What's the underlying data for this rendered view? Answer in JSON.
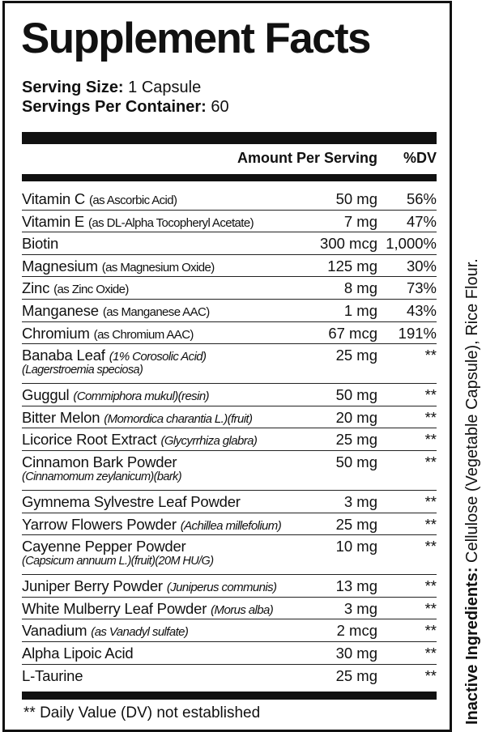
{
  "title": "Supplement Facts",
  "serving_size": {
    "label": "Serving Size:",
    "value": "1 Capsule"
  },
  "servings_per_container": {
    "label": "Servings Per Container:",
    "value": "60"
  },
  "columns": {
    "amount": "Amount Per Serving",
    "dv": "%DV"
  },
  "rows": [
    {
      "name": "Vitamin C",
      "detail": "(as Ascorbic Acid)",
      "amount": "50 mg",
      "dv": "56%"
    },
    {
      "name": "Vitamin E",
      "detail": "(as DL-Alpha Tocopheryl Acetate)",
      "amount": "7 mg",
      "dv": "47%"
    },
    {
      "name": "Biotin",
      "detail": "",
      "amount": "300 mcg",
      "dv": "1,000%"
    },
    {
      "name": "Magnesium",
      "detail": "(as Magnesium Oxide)",
      "amount": "125 mg",
      "dv": "30%"
    },
    {
      "name": "Zinc",
      "detail": "(as Zinc Oxide)",
      "amount": "8 mg",
      "dv": "73%"
    },
    {
      "name": "Manganese",
      "detail": "(as Manganese AAC)",
      "amount": "1 mg",
      "dv": "43%"
    },
    {
      "name": "Chromium",
      "detail": "(as Chromium AAC)",
      "amount": "67 mcg",
      "dv": "191%"
    },
    {
      "name": "Banaba Leaf",
      "detail": "(1% Corosolic Acid)",
      "detail2": "(Lagerstroemia speciosa)",
      "italic": true,
      "amount": "25 mg",
      "dv": "**"
    },
    {
      "name": "Guggul",
      "detail": "(Commiphora mukul)(resin)",
      "italic": true,
      "amount": "50 mg",
      "dv": "**"
    },
    {
      "name": "Bitter Melon",
      "detail": "(Momordica charantia L.)(fruit)",
      "italic": true,
      "amount": "20 mg",
      "dv": "**"
    },
    {
      "name": "Licorice Root Extract",
      "detail": "(Glycyrrhiza glabra)",
      "italic": true,
      "amount": "25 mg",
      "dv": "**"
    },
    {
      "name": "Cinnamon Bark Powder",
      "detail": "",
      "detail2": "(Cinnamomum zeylanicum)(bark)",
      "italic": true,
      "amount": "50 mg",
      "dv": "**"
    },
    {
      "name": "Gymnema Sylvestre Leaf Powder",
      "detail": "",
      "amount": "3 mg",
      "dv": "**"
    },
    {
      "name": "Yarrow Flowers Powder",
      "detail": "(Achillea millefolium)",
      "italic": true,
      "amount": "25 mg",
      "dv": "**"
    },
    {
      "name": "Cayenne Pepper Powder",
      "detail": "",
      "detail2": "(Capsicum annuum L.)(fruit)(20M HU/G)",
      "italic": true,
      "amount": "10 mg",
      "dv": "**"
    },
    {
      "name": "Juniper Berry Powder",
      "detail": "(Juniperus communis)",
      "italic": true,
      "amount": "13 mg",
      "dv": "**"
    },
    {
      "name": "White Mulberry Leaf Powder",
      "detail": "(Morus alba)",
      "italic": true,
      "amount": "3 mg",
      "dv": "**"
    },
    {
      "name": "Vanadium",
      "detail": "(as Vanadyl sulfate)",
      "italic": true,
      "amount": "2 mcg",
      "dv": "**"
    },
    {
      "name": "Alpha Lipoic Acid",
      "detail": "",
      "amount": "30 mg",
      "dv": "**"
    },
    {
      "name": "L-Taurine",
      "detail": "",
      "amount": "25 mg",
      "dv": "**"
    }
  ],
  "footnote": "** Daily Value (DV) not established",
  "inactive": {
    "label": "Inactive Ingredients:",
    "value": "Cellulose (Vegetable Capsule), Rice Flour."
  }
}
